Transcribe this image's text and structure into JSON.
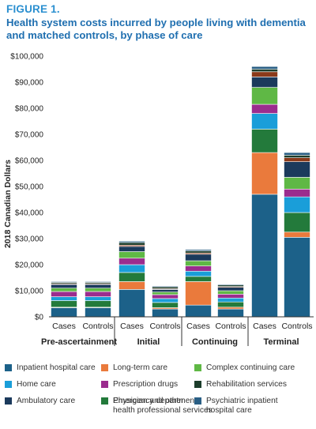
{
  "figure_label": "FIGURE 1.",
  "title": "Health system costs incurred by people living with dementia and matched controls, by phase of care",
  "chart_data": {
    "type": "bar",
    "stacked": true,
    "ylabel": "2018 Canadian Dollars",
    "ylim": [
      0,
      100000
    ],
    "yticks": [
      "$0",
      "$10,000",
      "$20,000",
      "$30,000",
      "$40,000",
      "$50,000",
      "$60,000",
      "$70,000",
      "$80,000",
      "$90,000",
      "$100,000"
    ],
    "groups": [
      "Pre-ascertainment",
      "Initial",
      "Continuing",
      "Terminal"
    ],
    "bar_labels": [
      "Cases",
      "Controls",
      "Cases",
      "Controls",
      "Cases",
      "Controls",
      "Cases",
      "Controls"
    ],
    "series": [
      {
        "name": "Inpatient hospital care",
        "color": "#1c6189",
        "values": [
          3500,
          3500,
          10500,
          3000,
          4500,
          3000,
          47000,
          30500
        ]
      },
      {
        "name": "Long-term care",
        "color": "#ea7a3c",
        "values": [
          200,
          200,
          3000,
          500,
          9000,
          700,
          16000,
          2000
        ]
      },
      {
        "name": "Physician and other health professional services",
        "color": "#237a3b",
        "values": [
          2500,
          2500,
          3500,
          2000,
          2000,
          2000,
          9000,
          7500
        ]
      },
      {
        "name": "Home care",
        "color": "#1a9ed9",
        "values": [
          1500,
          1500,
          3000,
          1500,
          2000,
          1500,
          6000,
          6000
        ]
      },
      {
        "name": "Prescription drugs",
        "color": "#9b2c8e",
        "values": [
          2000,
          2000,
          2500,
          1500,
          2000,
          1500,
          3500,
          3000
        ]
      },
      {
        "name": "Complex continuing care",
        "color": "#5fb845",
        "values": [
          1300,
          1300,
          2500,
          1000,
          2000,
          1300,
          6500,
          4500
        ]
      },
      {
        "name": "Ambulatory care",
        "color": "#1b3a5c",
        "values": [
          1400,
          1400,
          2000,
          1000,
          2500,
          1300,
          4000,
          6000
        ]
      },
      {
        "name": "Emergency department",
        "color": "#8b3a1a",
        "values": [
          300,
          300,
          500,
          300,
          500,
          300,
          2000,
          1500
        ]
      },
      {
        "name": "Rehabilitation services",
        "color": "#1c3d2b",
        "values": [
          500,
          500,
          1000,
          700,
          800,
          600,
          1000,
          1000
        ]
      },
      {
        "name": "Psychiatric inpatient hospital care",
        "color": "#2a5f85",
        "values": [
          300,
          300,
          500,
          300,
          500,
          300,
          1000,
          1000
        ]
      }
    ]
  },
  "legend": {
    "items": [
      {
        "label": "Inpatient hospital care",
        "color": "#1c6189"
      },
      {
        "label": "Long-term care",
        "color": "#ea7a3c"
      },
      {
        "label": "Complex continuing care",
        "color": "#5fb845"
      },
      {
        "label": "Home care",
        "color": "#1a9ed9"
      },
      {
        "label": "Prescription drugs",
        "color": "#9b2c8e"
      },
      {
        "label": "Rehabilitation services",
        "color": "#1c3d2b"
      },
      {
        "label": "Ambulatory care",
        "color": "#1b3a5c"
      },
      {
        "label": "Emergency department",
        "color": "#8b3a1a"
      },
      {
        "label": "Psychiatric inpatient\nhospital care",
        "color": "#2a5f85"
      },
      {
        "label": "Physician and other\nhealth professional services",
        "color": "#237a3b"
      }
    ]
  }
}
